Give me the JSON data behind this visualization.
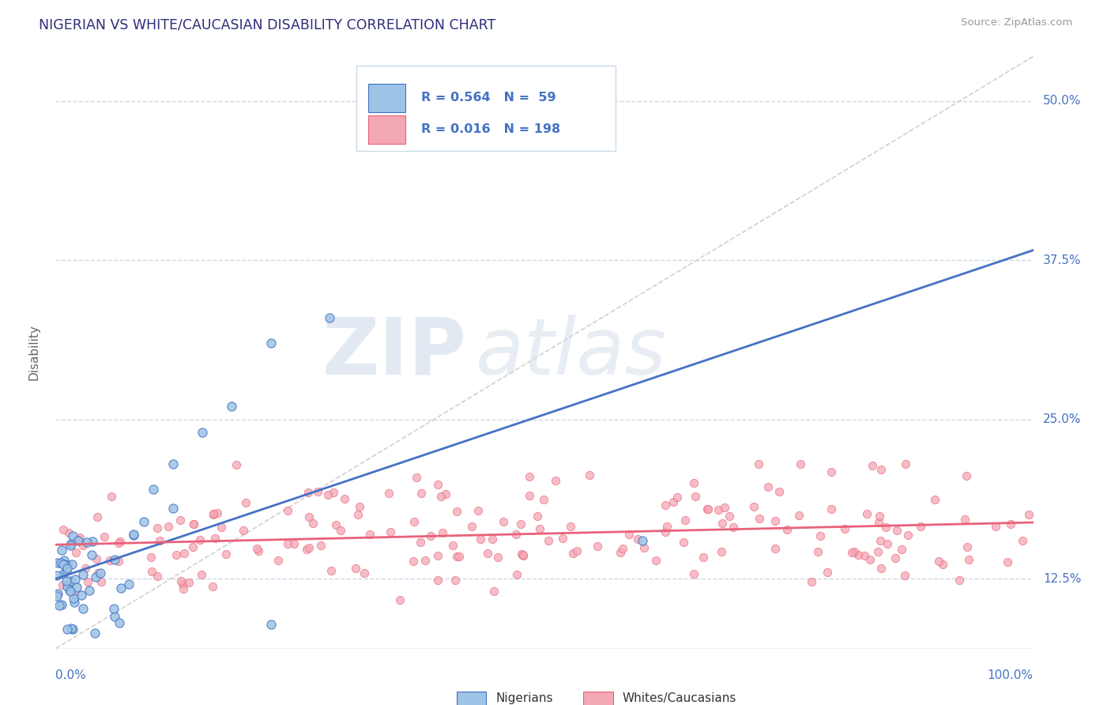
{
  "title": "NIGERIAN VS WHITE/CAUCASIAN DISABILITY CORRELATION CHART",
  "source": "Source: ZipAtlas.com",
  "xmin": 0.0,
  "xmax": 1.0,
  "ymin": 0.07,
  "ymax": 0.535,
  "blue_color": "#4472c4",
  "blue_fill": "#9dc3e6",
  "pink_color": "#e9627a",
  "pink_fill": "#f4a7b4",
  "legend_r1": "R = 0.564",
  "legend_n1": "N =  59",
  "legend_r2": "R = 0.016",
  "legend_n2": "N = 198",
  "title_color": "#2e2e7a",
  "axis_label_color": "#4472c4",
  "watermark_zip": "ZIP",
  "watermark_atlas": "atlas",
  "background_color": "#ffffff",
  "grid_color": "#c9d9e8",
  "ytick_vals": [
    0.125,
    0.25,
    0.375,
    0.5
  ],
  "ytick_labels": [
    "12.5%",
    "25.0%",
    "37.5%",
    "50.0%"
  ]
}
